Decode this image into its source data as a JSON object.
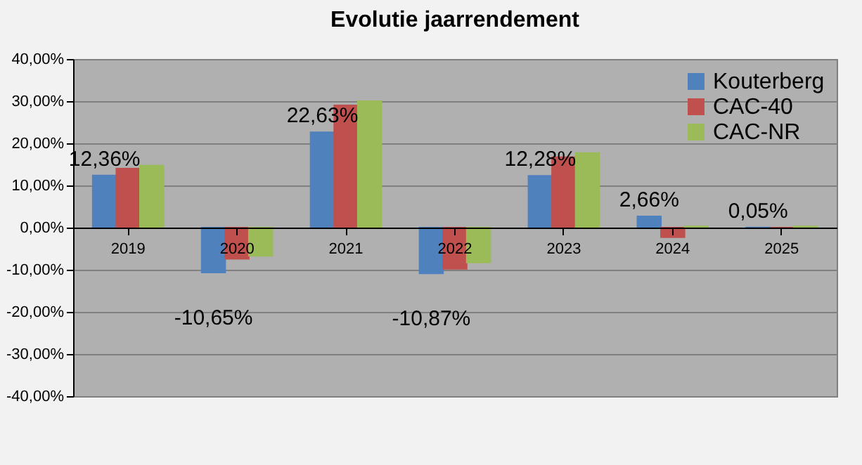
{
  "chart_data": {
    "type": "bar",
    "title": "Evolutie jaarrendement",
    "categories": [
      "2019",
      "2020",
      "2021",
      "2022",
      "2023",
      "2024",
      "2025"
    ],
    "series": [
      {
        "name": "Kouterberg",
        "color": "#4f81bd",
        "values": [
          12.36,
          -10.65,
          22.63,
          -10.87,
          12.28,
          2.66,
          0.05
        ],
        "value_labels": [
          "12,36%",
          "-10,65%",
          "22,63%",
          "-10,87%",
          "12,28%",
          "2,66%",
          "0,05%"
        ]
      },
      {
        "name": "CAC-40",
        "color": "#c0504d",
        "values": [
          14.0,
          -7.4,
          29.0,
          -9.8,
          16.7,
          -2.3,
          0
        ]
      },
      {
        "name": "CAC-NR",
        "color": "#9bbb59",
        "values": [
          14.7,
          -6.7,
          30.0,
          -8.3,
          17.7,
          0.3,
          0.3
        ]
      }
    ],
    "ylim": [
      -40,
      40
    ],
    "yticks": [
      {
        "value": -40,
        "label": "-40,00%"
      },
      {
        "value": -30,
        "label": "-30,00%"
      },
      {
        "value": -20,
        "label": "-20,00%"
      },
      {
        "value": -10,
        "label": "-10,00%"
      },
      {
        "value": 0,
        "label": "0,00%"
      },
      {
        "value": 10,
        "label": "10,00%"
      },
      {
        "value": 20,
        "label": "20,00%"
      },
      {
        "value": 30,
        "label": "30,00%"
      },
      {
        "value": 40,
        "label": "40,00%"
      }
    ],
    "grid": "y",
    "legend": "top right"
  }
}
